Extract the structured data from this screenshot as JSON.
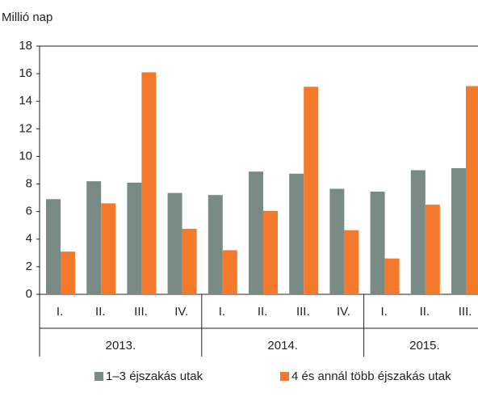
{
  "chart_data": {
    "type": "bar",
    "y_label": "Millió nap",
    "categories": [
      "I.",
      "II.",
      "III.",
      "IV.",
      "I.",
      "II.",
      "III.",
      "IV.",
      "I.",
      "II.",
      "III."
    ],
    "category_groups": [
      "2013.",
      "2014.",
      "2015."
    ],
    "series": [
      {
        "name": "1–3 éjszakás utak",
        "color": "#7a8a84",
        "values": [
          6.9,
          8.2,
          8.1,
          7.35,
          7.2,
          8.9,
          8.75,
          7.65,
          7.45,
          9.0,
          9.15
        ]
      },
      {
        "name": "4 és annál több éjszakás utak",
        "color": "#f4792a",
        "values": [
          3.1,
          6.6,
          16.1,
          4.75,
          3.2,
          6.05,
          15.05,
          4.65,
          2.6,
          6.5,
          15.1
        ]
      }
    ],
    "ylim": [
      0,
      18
    ],
    "yticks": [
      0,
      2,
      4,
      6,
      8,
      10,
      12,
      14,
      16,
      18
    ],
    "grid": false
  }
}
